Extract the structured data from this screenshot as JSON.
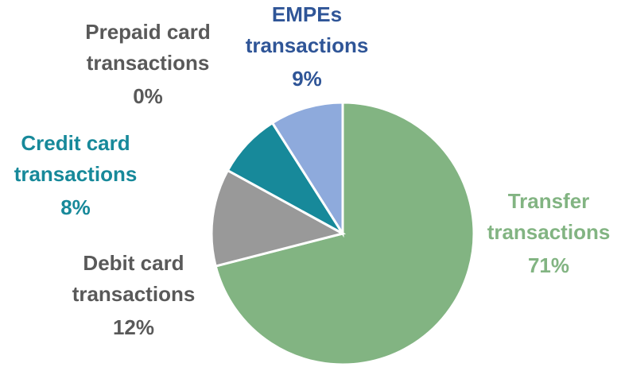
{
  "chart_data": {
    "type": "pie",
    "categories": [
      "Transfer transactions",
      "Debit card transactions",
      "Credit card transactions",
      "Prepaid card transactions",
      "EMPEs transactions"
    ],
    "values": [
      71,
      12,
      8,
      0,
      9
    ],
    "value_labels": [
      "71%",
      "12%",
      "8%",
      "0%",
      "9%"
    ],
    "colors": [
      "#82b482",
      "#999999",
      "#17899a",
      "#7f7f7f",
      "#8eaadc"
    ],
    "label_colors": [
      "#82b482",
      "#595959",
      "#17899a",
      "#595959",
      "#2f5597"
    ]
  }
}
